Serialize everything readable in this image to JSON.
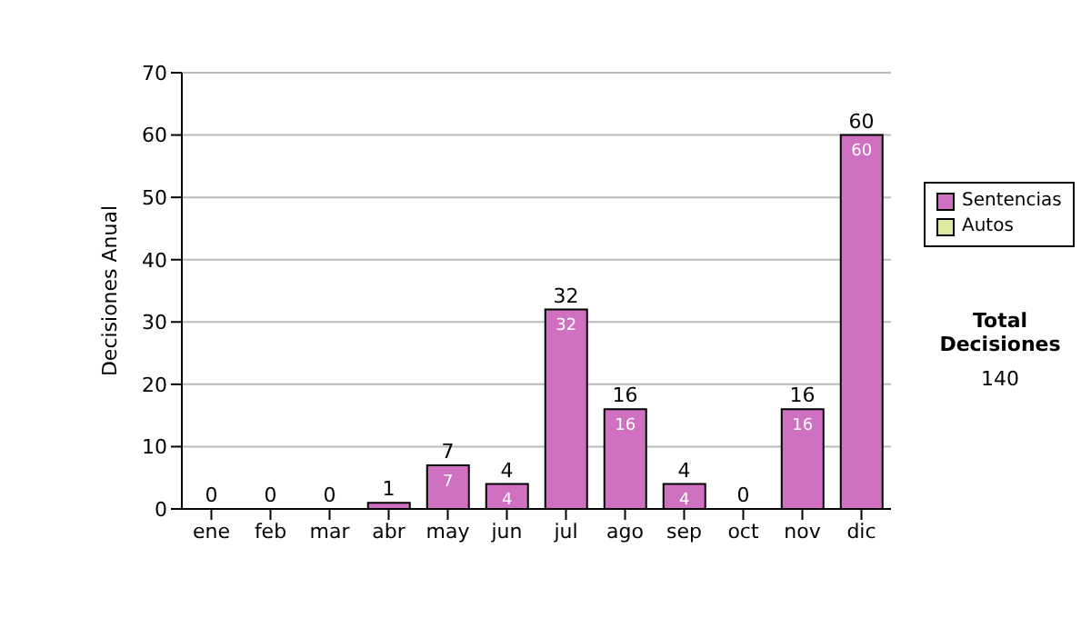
{
  "chart_data": {
    "type": "bar",
    "ylabel": "Decisiones Anual",
    "categories": [
      "ene",
      "feb",
      "mar",
      "abr",
      "may",
      "jun",
      "jul",
      "ago",
      "sep",
      "oct",
      "nov",
      "dic"
    ],
    "series": [
      {
        "name": "Sentencias",
        "color": "#d070c0",
        "values": [
          0,
          0,
          0,
          1,
          7,
          4,
          32,
          16,
          4,
          0,
          16,
          60
        ],
        "value_labels": [
          null,
          null,
          null,
          null,
          "7",
          "4",
          "32",
          "16",
          "4",
          null,
          "16",
          "60"
        ]
      },
      {
        "name": "Autos",
        "color": "#e0e8a0",
        "values": [
          0,
          0,
          0,
          0,
          0,
          0,
          0,
          0,
          0,
          0,
          0,
          0
        ]
      }
    ],
    "stacked": true,
    "totals": [
      "0",
      "0",
      "0",
      "1",
      "7",
      "4",
      "32",
      "16",
      "4",
      "0",
      "16",
      "60"
    ],
    "ylim": [
      0,
      70
    ],
    "yticks": [
      0,
      10,
      20,
      30,
      40,
      50,
      60,
      70
    ],
    "grid": "y",
    "legend": "right",
    "annotations": [
      "Total Decisiones",
      "140"
    ]
  }
}
